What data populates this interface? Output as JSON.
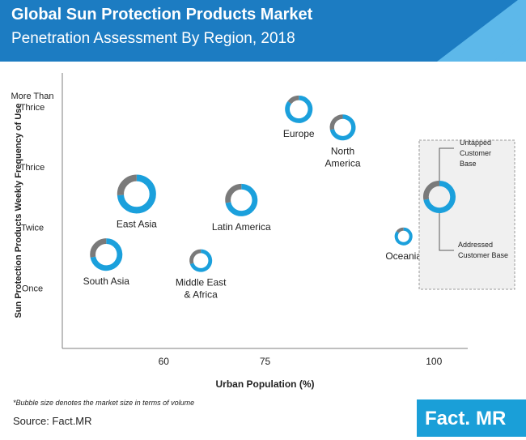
{
  "header": {
    "title": "Global Sun Protection Products Market",
    "subtitle": "Penetration Assessment By Region, 2018"
  },
  "colors": {
    "header_blue": "#1c7cc2",
    "header_light": "#5db8ea",
    "ring_blue": "#1ba0dc",
    "ring_gray": "#7a7a7a",
    "axis": "#7f7f7f",
    "legend_box": "#f0f0f0",
    "logo_blue": "#1a9fd8"
  },
  "chart_data": {
    "type": "scatter",
    "subtype": "bubble-donut",
    "title": "Global Sun Protection Products Market Penetration Assessment By Region, 2018",
    "xlabel": "Urban Population (%)",
    "ylabel": "Sun Protection Products Weekly Frequency of Use",
    "xlim": [
      45,
      105
    ],
    "x_ticks": [
      60,
      75,
      100
    ],
    "y_categories": [
      "Once",
      "Twice",
      "Thrice",
      "More Than Thrice"
    ],
    "ylim": [
      0,
      4.55
    ],
    "grid": false,
    "points": [
      {
        "name": "South Asia",
        "label": "South Asia",
        "x": 51.5,
        "y": 1.55,
        "size": 1.0,
        "addressed_share": 0.72
      },
      {
        "name": "East Asia",
        "label": "East Asia",
        "x": 56,
        "y": 2.55,
        "size": 1.2,
        "addressed_share": 0.74
      },
      {
        "name": "Middle East & Africa",
        "label": [
          "Middle East",
          "& Africa"
        ],
        "x": 65.5,
        "y": 1.45,
        "size": 0.7,
        "addressed_share": 0.7
      },
      {
        "name": "Latin America",
        "label": "Latin America",
        "x": 71.5,
        "y": 2.45,
        "size": 1.0,
        "addressed_share": 0.72
      },
      {
        "name": "Europe",
        "label": "Europe",
        "x": 80,
        "y": 3.95,
        "size": 0.85,
        "addressed_share": 0.85
      },
      {
        "name": "North America",
        "label": [
          "North",
          "America"
        ],
        "x": 86.5,
        "y": 3.65,
        "size": 0.8,
        "addressed_share": 0.72
      },
      {
        "name": "Oceania",
        "label": "Oceania",
        "x": 95.5,
        "y": 1.85,
        "size": 0.55,
        "addressed_share": 0.85
      }
    ],
    "legend": {
      "position": "right",
      "untapped_label": [
        "Untapped",
        "Customer",
        "Base"
      ],
      "addressed_label": [
        "Addressed",
        "Customer Base"
      ]
    },
    "footnote": "*Bubble size denotes the market size in terms of volume"
  },
  "footer": {
    "source": "Source: Fact.MR",
    "logo_main": "Fact.",
    "logo_accent": "MR"
  }
}
